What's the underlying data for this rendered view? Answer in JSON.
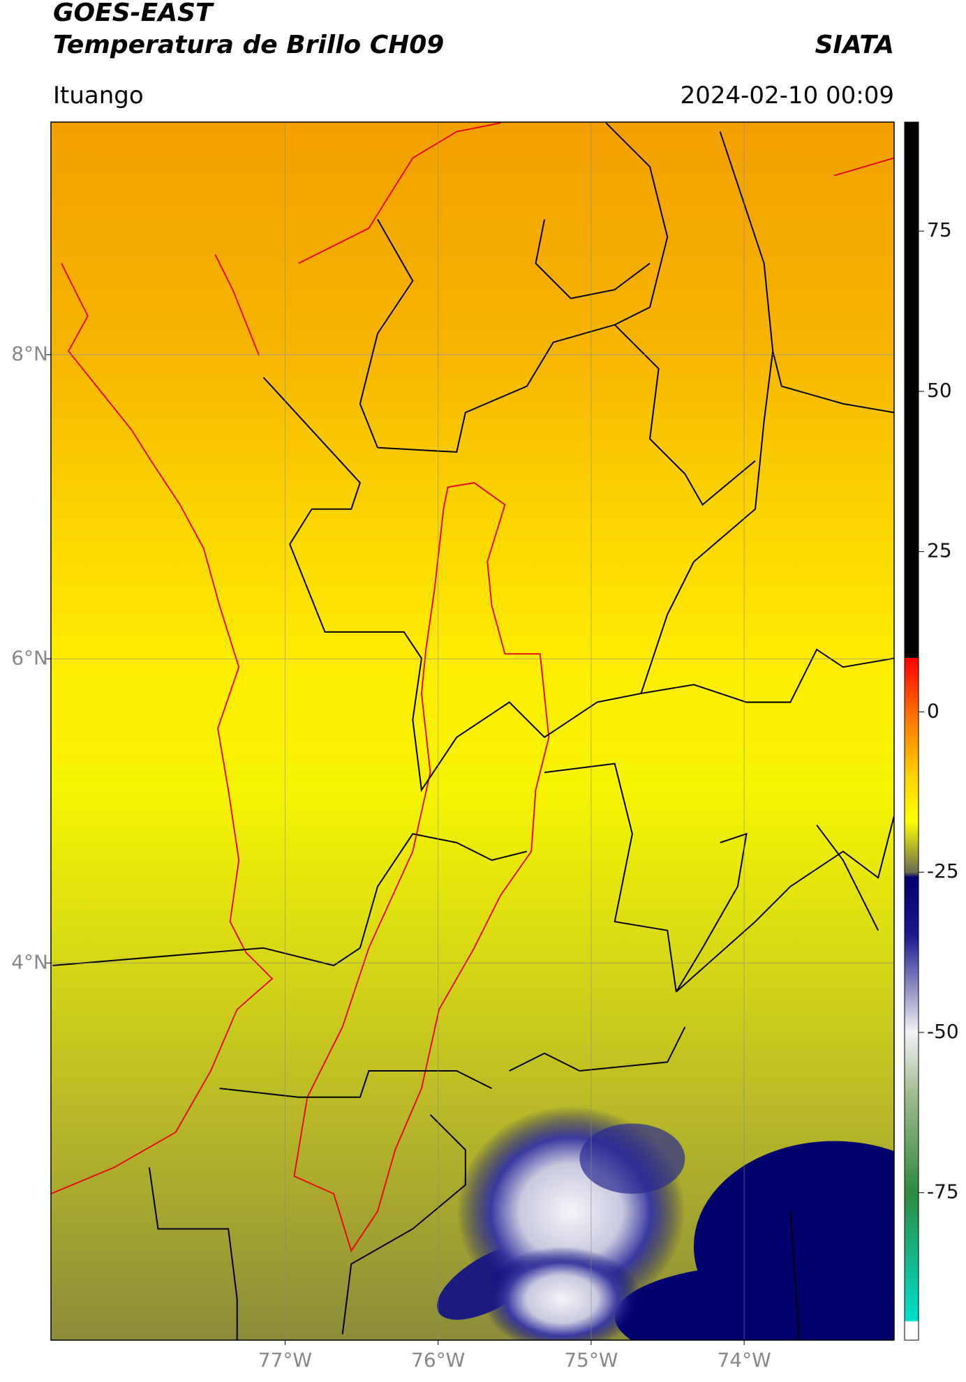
{
  "header": {
    "satellite": "GOES-EAST",
    "product": "Temperatura de Brillo CH09",
    "institution": "SIATA",
    "region": "Ituango",
    "datetime": "2024-02-10 00:09"
  },
  "map": {
    "xlim": [
      -78.53,
      -73.02
    ],
    "ylim": [
      1.52,
      9.53
    ],
    "grid": true,
    "xticks": [
      {
        "value": -77,
        "label": "77°W"
      },
      {
        "value": -76,
        "label": "76°W"
      },
      {
        "value": -75,
        "label": "75°W"
      },
      {
        "value": -74,
        "label": "74°W"
      }
    ],
    "yticks": [
      {
        "value": 8,
        "label": "8°N"
      },
      {
        "value": 6,
        "label": "6°N"
      },
      {
        "value": 4,
        "label": "4°N"
      }
    ]
  },
  "colorbar": {
    "lim": [
      -98,
      92
    ],
    "ticks": [
      75,
      50,
      25,
      0,
      -25,
      -50,
      -75
    ]
  }
}
